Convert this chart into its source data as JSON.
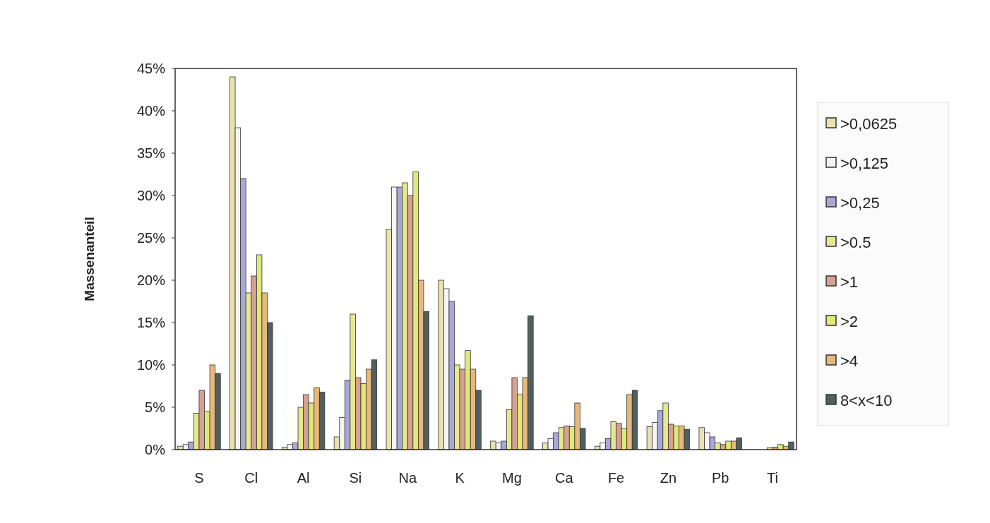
{
  "chart_data": {
    "type": "bar",
    "ylabel": "Massenanteil",
    "categories": [
      "S",
      "Cl",
      "Al",
      "Si",
      "Na",
      "K",
      "Mg",
      "Ca",
      "Fe",
      "Zn",
      "Pb",
      "Ti"
    ],
    "series": [
      {
        "name": ">0,0625",
        "color": "#e8e2b0",
        "values": [
          0.4,
          44,
          0.3,
          1.5,
          26,
          20,
          1.0,
          0.8,
          0.4,
          2.7,
          2.6,
          null
        ]
      },
      {
        "name": ">0,125",
        "color": "#f4f4f4",
        "values": [
          0.6,
          38,
          0.6,
          3.8,
          31,
          19,
          0.8,
          1.3,
          0.8,
          3.2,
          2.0,
          null
        ]
      },
      {
        "name": ">0,25",
        "color": "#a8a8d8",
        "values": [
          0.9,
          32,
          0.8,
          8.2,
          31,
          17.5,
          1.0,
          2.0,
          1.3,
          4.6,
          1.5,
          null
        ]
      },
      {
        "name": ">0.5",
        "color": "#e6e890",
        "values": [
          4.3,
          18.5,
          5,
          16,
          31.5,
          10,
          4.7,
          2.6,
          3.3,
          5.5,
          0.8,
          0.2
        ]
      },
      {
        "name": ">1",
        "color": "#d8a090",
        "values": [
          7.0,
          20.5,
          6.5,
          8.5,
          30,
          9.5,
          8.5,
          2.8,
          3.1,
          3.0,
          0.6,
          0.3
        ]
      },
      {
        "name": ">2",
        "color": "#e0e878",
        "values": [
          4.5,
          23,
          5.5,
          7.8,
          32.8,
          11.7,
          6.5,
          2.7,
          2.5,
          2.8,
          1.0,
          0.6
        ]
      },
      {
        "name": ">4",
        "color": "#e8b878",
        "values": [
          10,
          18.5,
          7.3,
          9.5,
          20,
          9.5,
          8.5,
          5.5,
          6.5,
          2.8,
          1.0,
          0.4
        ]
      },
      {
        "name": "8<x<10",
        "color": "#506060",
        "values": [
          9,
          15,
          6.8,
          10.6,
          16.3,
          7,
          15.8,
          2.5,
          7.0,
          2.4,
          1.4,
          0.9
        ]
      }
    ],
    "ylim": [
      0,
      45
    ],
    "yticks": [
      {
        "value": 0,
        "label": "0%"
      },
      {
        "value": 5,
        "label": "5%"
      },
      {
        "value": 10,
        "label": "10%"
      },
      {
        "value": 15,
        "label": "15%"
      },
      {
        "value": 20,
        "label": "20%"
      },
      {
        "value": 25,
        "label": "25%"
      },
      {
        "value": 30,
        "label": "30%"
      },
      {
        "value": 35,
        "label": "35%"
      },
      {
        "value": 40,
        "label": "40%"
      },
      {
        "value": 45,
        "label": "45%"
      }
    ],
    "legend": "right",
    "grid": false
  }
}
